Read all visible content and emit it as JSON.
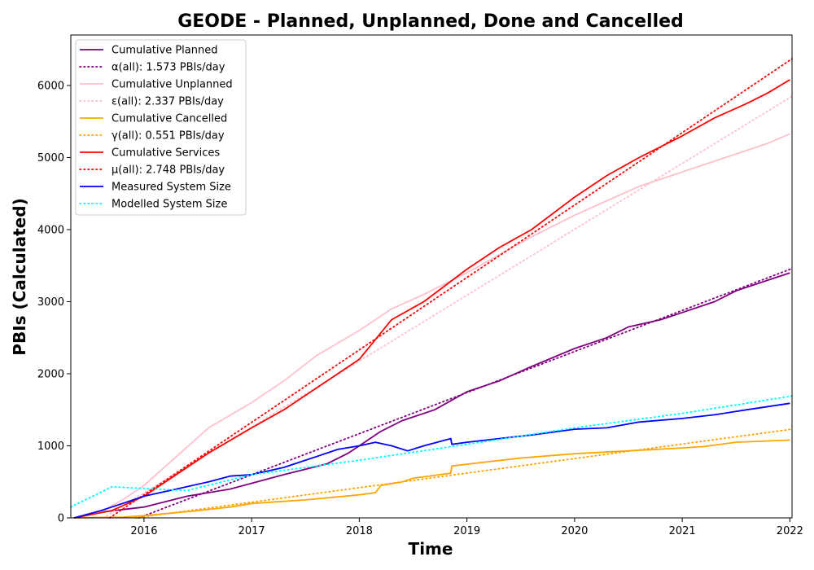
{
  "chart_data": {
    "type": "line",
    "title": "GEODE - Planned, Unplanned, Done  and Cancelled",
    "xlabel": "Time",
    "ylabel": "PBIs (Calculated)",
    "xlim": [
      2015.32,
      2022.02
    ],
    "ylim": [
      0,
      6700
    ],
    "xticks": [
      2016,
      2017,
      2018,
      2019,
      2020,
      2021,
      2022
    ],
    "xtick_labels": [
      "2016",
      "2017",
      "2018",
      "2019",
      "2020",
      "2021",
      "2022"
    ],
    "yticks": [
      0,
      1000,
      2000,
      3000,
      4000,
      5000,
      6000
    ],
    "ytick_labels": [
      "0",
      "1000",
      "2000",
      "3000",
      "4000",
      "5000",
      "6000"
    ],
    "legend_position": "upper-left",
    "grid": false,
    "series": [
      {
        "name": "Cumulative Planned",
        "color": "#800080",
        "style": "solid",
        "x": [
          2015.35,
          2015.6,
          2016.0,
          2016.4,
          2016.8,
          2017.0,
          2017.3,
          2017.7,
          2017.9,
          2018.0,
          2018.2,
          2018.4,
          2018.7,
          2019.0,
          2019.3,
          2019.6,
          2020.0,
          2020.3,
          2020.5,
          2020.8,
          2021.0,
          2021.3,
          2021.5,
          2021.8,
          2022.0
        ],
        "y": [
          0,
          80,
          150,
          300,
          400,
          480,
          600,
          750,
          900,
          1000,
          1200,
          1350,
          1500,
          1750,
          1900,
          2100,
          2350,
          2500,
          2650,
          2750,
          2850,
          3000,
          3150,
          3300,
          3400
        ]
      },
      {
        "name": "α(all): 1.573 PBIs/day",
        "color": "#800080",
        "style": "dotted",
        "x": [
          2015.95,
          2022.02
        ],
        "y": [
          0,
          3460
        ]
      },
      {
        "name": "Cumulative Unplanned",
        "color": "#ffc0cb",
        "style": "solid",
        "x": [
          2015.35,
          2015.6,
          2015.8,
          2016.0,
          2016.3,
          2016.6,
          2017.0,
          2017.3,
          2017.6,
          2018.0,
          2018.3,
          2018.6,
          2019.0,
          2019.3,
          2019.6,
          2020.0,
          2020.3,
          2020.6,
          2021.0,
          2021.3,
          2021.6,
          2021.8,
          2022.0
        ],
        "y": [
          0,
          80,
          250,
          450,
          850,
          1250,
          1600,
          1900,
          2250,
          2600,
          2900,
          3100,
          3400,
          3650,
          3900,
          4200,
          4400,
          4600,
          4800,
          4950,
          5100,
          5200,
          5330
        ]
      },
      {
        "name": "ε(all): 2.337 PBIs/day",
        "color": "#ffc0cb",
        "style": "dotted",
        "x": [
          2015.62,
          2022.02
        ],
        "y": [
          0,
          5850
        ]
      },
      {
        "name": "Cumulative Cancelled",
        "color": "#ffa500",
        "style": "solid",
        "x": [
          2015.35,
          2015.8,
          2016.0,
          2016.5,
          2016.8,
          2017.0,
          2017.5,
          2018.0,
          2018.15,
          2018.2,
          2018.4,
          2018.5,
          2018.85,
          2018.86,
          2019.2,
          2019.5,
          2020.0,
          2020.5,
          2021.0,
          2021.2,
          2021.5,
          2022.0
        ],
        "y": [
          0,
          10,
          30,
          100,
          150,
          200,
          250,
          320,
          350,
          450,
          500,
          550,
          620,
          720,
          780,
          830,
          890,
          930,
          970,
          990,
          1050,
          1080
        ]
      },
      {
        "name": "γ(all): 0.551 PBIs/day",
        "color": "#ffa500",
        "style": "dotted",
        "x": [
          2015.92,
          2022.02
        ],
        "y": [
          0,
          1230
        ]
      },
      {
        "name": "Cumulative Services",
        "color": "#ff0000",
        "style": "solid",
        "x": [
          2015.35,
          2015.7,
          2016.0,
          2016.3,
          2016.6,
          2017.0,
          2017.3,
          2017.6,
          2018.0,
          2018.3,
          2018.6,
          2019.0,
          2019.3,
          2019.6,
          2020.0,
          2020.3,
          2020.6,
          2021.0,
          2021.3,
          2021.6,
          2021.8,
          2022.0
        ],
        "y": [
          0,
          100,
          300,
          600,
          900,
          1250,
          1500,
          1800,
          2200,
          2750,
          3000,
          3450,
          3750,
          4000,
          4450,
          4750,
          5000,
          5300,
          5550,
          5750,
          5900,
          6080
        ]
      },
      {
        "name": "μ(all): 2.748 PBIs/day",
        "color": "#ff0000",
        "style": "dotted",
        "x": [
          2015.68,
          2022.02
        ],
        "y": [
          0,
          6370
        ]
      },
      {
        "name": "Measured System Size",
        "color": "#0000ff",
        "style": "solid",
        "x": [
          2015.35,
          2015.6,
          2015.8,
          2016.0,
          2016.3,
          2016.6,
          2016.8,
          2017.0,
          2017.3,
          2017.6,
          2017.8,
          2018.0,
          2018.15,
          2018.3,
          2018.45,
          2018.6,
          2018.85,
          2018.86,
          2019.0,
          2019.3,
          2019.6,
          2020.0,
          2020.3,
          2020.6,
          2021.0,
          2021.3,
          2021.6,
          2022.0
        ],
        "y": [
          0,
          100,
          200,
          300,
          400,
          500,
          580,
          600,
          700,
          850,
          950,
          1000,
          1050,
          1000,
          930,
          1000,
          1100,
          1020,
          1050,
          1100,
          1150,
          1230,
          1250,
          1330,
          1380,
          1430,
          1500,
          1590
        ]
      },
      {
        "name": "Modelled System Size",
        "color": "#00ffff",
        "style": "dotted",
        "x": [
          2015.32,
          2015.7,
          2016.4,
          2017.0,
          2018.0,
          2019.0,
          2020.0,
          2021.0,
          2022.02
        ],
        "y": [
          150,
          430,
          380,
          600,
          800,
          1020,
          1250,
          1450,
          1690
        ]
      }
    ]
  }
}
